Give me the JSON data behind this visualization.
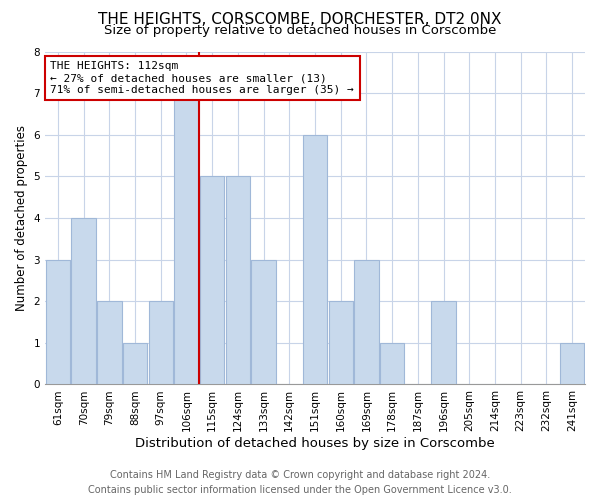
{
  "title": "THE HEIGHTS, CORSCOMBE, DORCHESTER, DT2 0NX",
  "subtitle": "Size of property relative to detached houses in Corscombe",
  "xlabel": "Distribution of detached houses by size in Corscombe",
  "ylabel": "Number of detached properties",
  "footer_line1": "Contains HM Land Registry data © Crown copyright and database right 2024.",
  "footer_line2": "Contains public sector information licensed under the Open Government Licence v3.0.",
  "bin_labels": [
    "61sqm",
    "70sqm",
    "79sqm",
    "88sqm",
    "97sqm",
    "106sqm",
    "115sqm",
    "124sqm",
    "133sqm",
    "142sqm",
    "151sqm",
    "160sqm",
    "169sqm",
    "178sqm",
    "187sqm",
    "196sqm",
    "205sqm",
    "214sqm",
    "223sqm",
    "232sqm",
    "241sqm"
  ],
  "bar_heights": [
    3,
    4,
    2,
    1,
    2,
    7,
    5,
    5,
    3,
    0,
    6,
    2,
    3,
    1,
    0,
    2,
    0,
    0,
    0,
    0,
    1
  ],
  "highlight_bin_index": 5,
  "bar_color": "#c8d9ec",
  "bar_edge_color": "#a0b8d8",
  "highlight_line_color": "#cc0000",
  "annotation_text": "THE HEIGHTS: 112sqm\n← 27% of detached houses are smaller (13)\n71% of semi-detached houses are larger (35) →",
  "annotation_box_edge_color": "#cc0000",
  "annotation_box_face_color": "#ffffff",
  "ylim": [
    0,
    8
  ],
  "yticks": [
    0,
    1,
    2,
    3,
    4,
    5,
    6,
    7,
    8
  ],
  "grid_color": "#c8d4e8",
  "background_color": "#ffffff",
  "plot_bg_color": "#ffffff",
  "title_fontsize": 11,
  "subtitle_fontsize": 9.5,
  "xlabel_fontsize": 9.5,
  "ylabel_fontsize": 8.5,
  "tick_fontsize": 7.5,
  "annotation_fontsize": 8,
  "footer_fontsize": 7
}
